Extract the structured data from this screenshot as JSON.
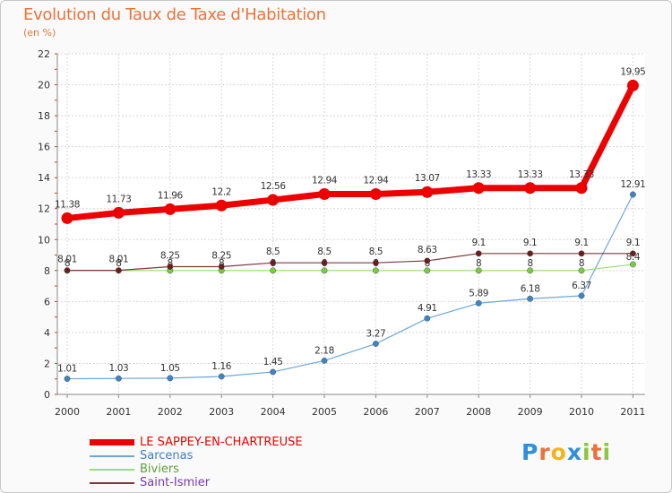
{
  "title": "Evolution du Taux de Taxe d'Habitation",
  "subtitle": "(en %)",
  "brand": {
    "letters": [
      "P",
      "r",
      "o",
      "x",
      "i",
      "t",
      "i"
    ],
    "colors": [
      "#2f8fd8",
      "#e8743b",
      "#f2b51c",
      "#2f8fd8",
      "#8cc63f",
      "#e8743b",
      "#8cc63f"
    ]
  },
  "chart_data": {
    "type": "line",
    "categories": [
      "2000",
      "2001",
      "2002",
      "2003",
      "2004",
      "2005",
      "2006",
      "2007",
      "2008",
      "2009",
      "2010",
      "2011"
    ],
    "ylim": [
      0,
      22
    ],
    "yticks": [
      "0",
      "2",
      "4",
      "6",
      "8",
      "10",
      "12",
      "14",
      "16",
      "18",
      "20",
      "22"
    ],
    "grid": true,
    "legend_position": "bottom-left",
    "series": [
      {
        "name": "LE SAPPEY-EN-CHARTREUSE",
        "color": "#ee0000",
        "point_color": "#ee0000",
        "emphasis": "thick",
        "values": [
          11.38,
          11.73,
          11.96,
          12.2,
          12.56,
          12.94,
          12.94,
          13.07,
          13.33,
          13.33,
          13.33,
          19.95
        ],
        "labels": [
          "11.38",
          "11.73",
          "11.96",
          "12.2",
          "12.56",
          "12.94",
          "12.94",
          "13.07",
          "13.33",
          "13.33",
          "13.33",
          "19.95"
        ]
      },
      {
        "name": "Sarcenas",
        "color": "#6ea5d8",
        "point_color": "#3d85c6",
        "emphasis": "thin",
        "values": [
          1.01,
          1.03,
          1.05,
          1.16,
          1.45,
          2.18,
          3.27,
          4.91,
          5.89,
          6.18,
          6.37,
          12.91
        ],
        "labels": [
          "1.01",
          "1.03",
          "1.05",
          "1.16",
          "1.45",
          "2.18",
          "3.27",
          "4.91",
          "5.89",
          "6.18",
          "6.37",
          "12.91"
        ]
      },
      {
        "name": "Biviers",
        "color": "#99dd77",
        "point_color": "#77cc44",
        "emphasis": "thin",
        "values": [
          8,
          8,
          8,
          8,
          8,
          8,
          8,
          8,
          8,
          8,
          8,
          8.4
        ],
        "labels": [
          "8",
          "8",
          "8",
          "8",
          "8",
          "8",
          "8",
          "8",
          "8",
          "8",
          "8",
          "8.4"
        ]
      },
      {
        "name": "Saint-Ismier",
        "color": "#7a3a3a",
        "point_color": "#6b1e1e",
        "emphasis": "thin",
        "values": [
          8.01,
          8.01,
          8.25,
          8.25,
          8.5,
          8.5,
          8.5,
          8.63,
          9.1,
          9.1,
          9.1,
          9.1
        ],
        "labels": [
          "8.01",
          "8.01",
          "8.25",
          "8.25",
          "8.5",
          "8.5",
          "8.5",
          "8.63",
          "9.1",
          "9.1",
          "9.1",
          "9.1"
        ]
      }
    ]
  }
}
